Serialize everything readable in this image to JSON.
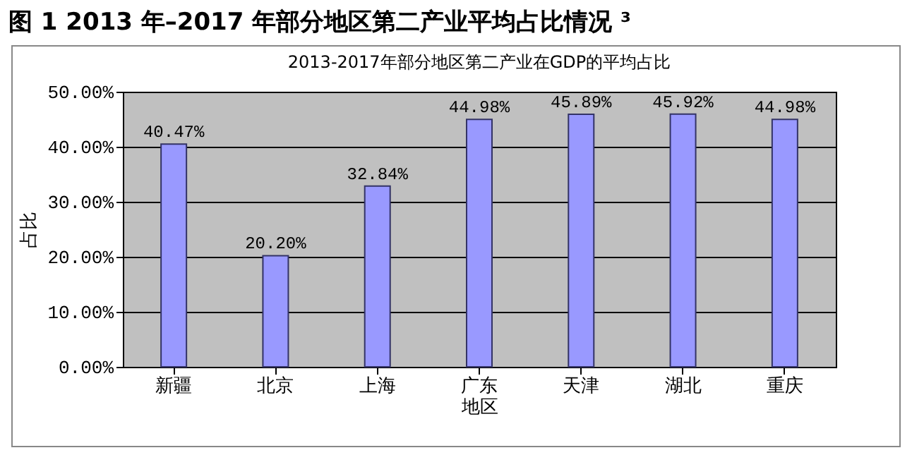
{
  "chart_data": {
    "type": "bar",
    "title": "图 1  2013 年–2017 年部分地区第二产业平均占比情况 ³",
    "subtitle": "2013-2017年部分地区第二产业在GDP的平均占比",
    "xlabel": "地区",
    "ylabel": "占比",
    "categories": [
      "新疆",
      "北京",
      "上海",
      "广东",
      "天津",
      "湖北",
      "重庆"
    ],
    "values": [
      40.47,
      20.2,
      32.84,
      44.98,
      45.89,
      45.92,
      44.98
    ],
    "value_labels": [
      "40.47%",
      "20.20%",
      "32.84%",
      "44.98%",
      "45.89%",
      "45.92%",
      "44.98%"
    ],
    "color": "#9999ff",
    "ylim": [
      0,
      50
    ],
    "yticks": [
      {
        "value": 0,
        "label": "0.00%"
      },
      {
        "value": 10,
        "label": "10.00%"
      },
      {
        "value": 20,
        "label": "20.00%"
      },
      {
        "value": 30,
        "label": "30.00%"
      },
      {
        "value": 40,
        "label": "40.00%"
      },
      {
        "value": 50,
        "label": "50.00%"
      }
    ],
    "grid": "y"
  }
}
